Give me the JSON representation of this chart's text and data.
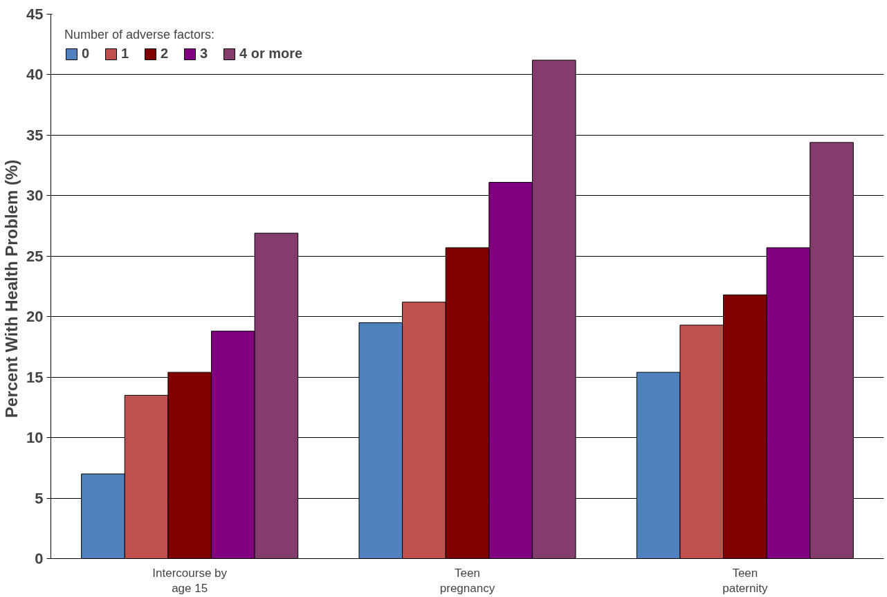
{
  "chart_data": {
    "type": "bar",
    "ylabel": "Percent With Health Problem  (%)",
    "legend_title": "Number of adverse factors:",
    "categories": [
      "Intercourse by\nage 15",
      "Teen\npregnancy",
      "Teen\npaternity"
    ],
    "series": [
      {
        "name": "0",
        "color": "#4f81bd",
        "values": [
          7.0,
          19.5,
          15.4
        ]
      },
      {
        "name": "1",
        "color": "#c0504d",
        "values": [
          13.5,
          21.2,
          19.3
        ]
      },
      {
        "name": "2",
        "color": "#800000",
        "values": [
          15.4,
          25.7,
          21.8
        ]
      },
      {
        "name": "3",
        "color": "#800080",
        "values": [
          18.8,
          31.1,
          25.7
        ]
      },
      {
        "name": "4 or more",
        "color": "#843c6c",
        "values": [
          26.9,
          41.2,
          34.4
        ]
      }
    ],
    "ylim": [
      0,
      45
    ],
    "yticks": [
      0,
      5,
      10,
      15,
      20,
      25,
      30,
      35,
      40,
      45
    ],
    "grid": "y",
    "legend": "top left"
  }
}
